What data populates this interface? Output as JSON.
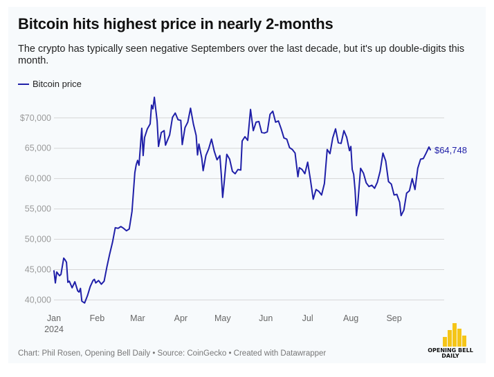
{
  "header": {
    "title": "Bitcoin hits highest price in nearly 2-months",
    "subtitle": "The crypto has typically seen negative Septembers over the last decade, but it's up double-digits this month."
  },
  "legend": {
    "label": "Bitcoin price"
  },
  "end_label": "$64,748",
  "footer": {
    "credits": "Chart: Phil Rosen, Opening Bell Daily • Source: CoinGecko • Created with Datawrapper"
  },
  "logo": {
    "line1": "OPENING BELL",
    "line2": "DAILY"
  },
  "colors": {
    "line": "#1f1fa8",
    "grid": "#d6d6d6",
    "axis_text": "#9a9a9a",
    "logo": "#f5c518"
  },
  "chart_data": {
    "type": "line",
    "title": "Bitcoin hits highest price in nearly 2-months",
    "xlabel": "",
    "ylabel": "",
    "ylim": [
      38000,
      73500
    ],
    "y_ticks": [
      40000,
      45000,
      50000,
      55000,
      60000,
      65000,
      70000
    ],
    "y_tick_labels": [
      "40,000",
      "45,000",
      "50,000",
      "55,000",
      "60,000",
      "65,000",
      "$70,000"
    ],
    "x_ticks": [
      {
        "label": "Jan",
        "sublabel": "2024",
        "date": "2024-01-01"
      },
      {
        "label": "Feb",
        "date": "2024-02-01"
      },
      {
        "label": "Mar",
        "date": "2024-03-01"
      },
      {
        "label": "Apr",
        "date": "2024-04-01"
      },
      {
        "label": "May",
        "date": "2024-05-01"
      },
      {
        "label": "Jun",
        "date": "2024-06-01"
      },
      {
        "label": "Jul",
        "date": "2024-07-01"
      },
      {
        "label": "Aug",
        "date": "2024-08-01"
      },
      {
        "label": "Sep",
        "date": "2024-09-01"
      }
    ],
    "grid": true,
    "legend_position": "top-left",
    "series": [
      {
        "name": "Bitcoin price",
        "points": [
          [
            "2024-01-01",
            44800
          ],
          [
            "2024-01-02",
            42800
          ],
          [
            "2024-01-03",
            44600
          ],
          [
            "2024-01-05",
            44000
          ],
          [
            "2024-01-06",
            44200
          ],
          [
            "2024-01-08",
            46900
          ],
          [
            "2024-01-09",
            46600
          ],
          [
            "2024-01-10",
            46200
          ],
          [
            "2024-01-11",
            42900
          ],
          [
            "2024-01-12",
            43100
          ],
          [
            "2024-01-14",
            42000
          ],
          [
            "2024-01-16",
            43000
          ],
          [
            "2024-01-18",
            41500
          ],
          [
            "2024-01-19",
            41300
          ],
          [
            "2024-01-20",
            41900
          ],
          [
            "2024-01-21",
            39800
          ],
          [
            "2024-01-23",
            39500
          ],
          [
            "2024-01-25",
            40700
          ],
          [
            "2024-01-27",
            42200
          ],
          [
            "2024-01-29",
            43200
          ],
          [
            "2024-01-30",
            43400
          ],
          [
            "2024-01-31",
            42800
          ],
          [
            "2024-02-02",
            43200
          ],
          [
            "2024-02-04",
            42600
          ],
          [
            "2024-02-06",
            43100
          ],
          [
            "2024-02-08",
            45500
          ],
          [
            "2024-02-10",
            47600
          ],
          [
            "2024-02-12",
            49500
          ],
          [
            "2024-02-14",
            51900
          ],
          [
            "2024-02-16",
            51800
          ],
          [
            "2024-02-18",
            52100
          ],
          [
            "2024-02-20",
            51800
          ],
          [
            "2024-02-22",
            51400
          ],
          [
            "2024-02-24",
            51700
          ],
          [
            "2024-02-26",
            54600
          ],
          [
            "2024-02-28",
            61000
          ],
          [
            "2024-02-29",
            62300
          ],
          [
            "2024-03-01",
            63000
          ],
          [
            "2024-03-02",
            62200
          ],
          [
            "2024-03-04",
            68300
          ],
          [
            "2024-03-05",
            63800
          ],
          [
            "2024-03-06",
            66800
          ],
          [
            "2024-03-08",
            68200
          ],
          [
            "2024-03-10",
            69000
          ],
          [
            "2024-03-11",
            72100
          ],
          [
            "2024-03-12",
            71500
          ],
          [
            "2024-03-13",
            73400
          ],
          [
            "2024-03-15",
            69500
          ],
          [
            "2024-03-16",
            65300
          ],
          [
            "2024-03-18",
            67600
          ],
          [
            "2024-03-20",
            67900
          ],
          [
            "2024-03-21",
            65500
          ],
          [
            "2024-03-24",
            67200
          ],
          [
            "2024-03-26",
            70100
          ],
          [
            "2024-03-28",
            70800
          ],
          [
            "2024-03-30",
            69700
          ],
          [
            "2024-04-01",
            69600
          ],
          [
            "2024-04-02",
            65600
          ],
          [
            "2024-04-04",
            68400
          ],
          [
            "2024-04-06",
            69300
          ],
          [
            "2024-04-08",
            71600
          ],
          [
            "2024-04-10",
            69000
          ],
          [
            "2024-04-12",
            67100
          ],
          [
            "2024-04-13",
            63900
          ],
          [
            "2024-04-14",
            65700
          ],
          [
            "2024-04-16",
            63400
          ],
          [
            "2024-04-17",
            61300
          ],
          [
            "2024-04-19",
            63800
          ],
          [
            "2024-04-21",
            64900
          ],
          [
            "2024-04-23",
            66500
          ],
          [
            "2024-04-25",
            64500
          ],
          [
            "2024-04-27",
            63100
          ],
          [
            "2024-04-29",
            63800
          ],
          [
            "2024-04-30",
            60700
          ],
          [
            "2024-05-01",
            56900
          ],
          [
            "2024-05-02",
            59100
          ],
          [
            "2024-05-04",
            64000
          ],
          [
            "2024-05-06",
            63200
          ],
          [
            "2024-05-08",
            61200
          ],
          [
            "2024-05-10",
            60800
          ],
          [
            "2024-05-12",
            61500
          ],
          [
            "2024-05-14",
            61400
          ],
          [
            "2024-05-15",
            66200
          ],
          [
            "2024-05-17",
            66900
          ],
          [
            "2024-05-19",
            66300
          ],
          [
            "2024-05-21",
            71400
          ],
          [
            "2024-05-23",
            67900
          ],
          [
            "2024-05-25",
            69300
          ],
          [
            "2024-05-27",
            69400
          ],
          [
            "2024-05-29",
            67600
          ],
          [
            "2024-05-31",
            67500
          ],
          [
            "2024-06-02",
            67700
          ],
          [
            "2024-06-04",
            70600
          ],
          [
            "2024-06-06",
            71100
          ],
          [
            "2024-06-08",
            69300
          ],
          [
            "2024-06-10",
            69500
          ],
          [
            "2024-06-12",
            68200
          ],
          [
            "2024-06-14",
            66700
          ],
          [
            "2024-06-16",
            66500
          ],
          [
            "2024-06-18",
            65100
          ],
          [
            "2024-06-20",
            64800
          ],
          [
            "2024-06-22",
            64200
          ],
          [
            "2024-06-24",
            60300
          ],
          [
            "2024-06-25",
            61800
          ],
          [
            "2024-06-27",
            61500
          ],
          [
            "2024-06-29",
            60800
          ],
          [
            "2024-07-01",
            62700
          ],
          [
            "2024-07-03",
            59800
          ],
          [
            "2024-07-05",
            56600
          ],
          [
            "2024-07-07",
            58200
          ],
          [
            "2024-07-09",
            57900
          ],
          [
            "2024-07-11",
            57300
          ],
          [
            "2024-07-13",
            59200
          ],
          [
            "2024-07-15",
            64800
          ],
          [
            "2024-07-17",
            64100
          ],
          [
            "2024-07-19",
            66700
          ],
          [
            "2024-07-21",
            68200
          ],
          [
            "2024-07-23",
            65900
          ],
          [
            "2024-07-25",
            65800
          ],
          [
            "2024-07-27",
            67900
          ],
          [
            "2024-07-29",
            66800
          ],
          [
            "2024-07-31",
            64600
          ],
          [
            "2024-08-01",
            65300
          ],
          [
            "2024-08-02",
            61500
          ],
          [
            "2024-08-03",
            60700
          ],
          [
            "2024-08-04",
            58100
          ],
          [
            "2024-08-05",
            53900
          ],
          [
            "2024-08-06",
            56000
          ],
          [
            "2024-08-08",
            61700
          ],
          [
            "2024-08-10",
            60900
          ],
          [
            "2024-08-12",
            59300
          ],
          [
            "2024-08-14",
            58700
          ],
          [
            "2024-08-16",
            58900
          ],
          [
            "2024-08-18",
            58400
          ],
          [
            "2024-08-20",
            59400
          ],
          [
            "2024-08-22",
            61200
          ],
          [
            "2024-08-24",
            64200
          ],
          [
            "2024-08-26",
            62900
          ],
          [
            "2024-08-28",
            59500
          ],
          [
            "2024-08-30",
            59100
          ],
          [
            "2024-09-01",
            57300
          ],
          [
            "2024-09-03",
            57400
          ],
          [
            "2024-09-05",
            56100
          ],
          [
            "2024-09-06",
            53900
          ],
          [
            "2024-09-08",
            54800
          ],
          [
            "2024-09-10",
            57600
          ],
          [
            "2024-09-12",
            58000
          ],
          [
            "2024-09-14",
            60000
          ],
          [
            "2024-09-16",
            58200
          ],
          [
            "2024-09-18",
            61700
          ],
          [
            "2024-09-20",
            63200
          ],
          [
            "2024-09-22",
            63300
          ],
          [
            "2024-09-24",
            64200
          ],
          [
            "2024-09-26",
            65200
          ],
          [
            "2024-09-27",
            64748
          ]
        ]
      }
    ],
    "annotations": [
      {
        "text": "$64,748",
        "date": "2024-09-27",
        "value": 64748
      }
    ]
  }
}
